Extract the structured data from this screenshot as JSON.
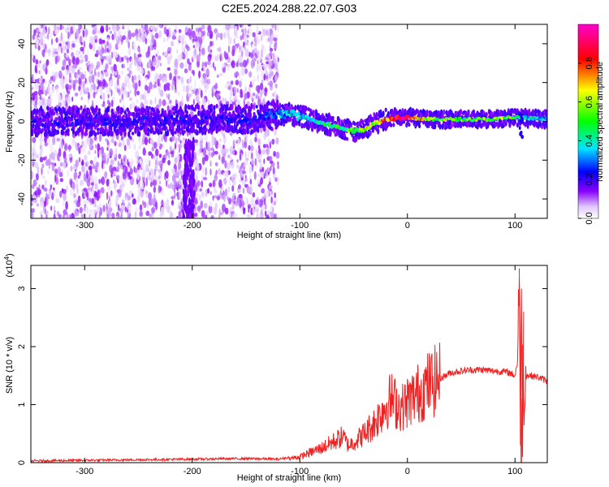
{
  "title": "C2E5.2024.288.22.07.G03",
  "chart_data": [
    {
      "type": "heatmap",
      "xlabel": "Height of straight line (km)",
      "ylabel": "Frequency (Hz)",
      "xlim": [
        -350,
        130
      ],
      "ylim": [
        -50,
        50
      ],
      "x_ticks": [
        -300,
        -200,
        -100,
        0,
        100
      ],
      "y_ticks": [
        -40,
        -20,
        0,
        20,
        40
      ],
      "colorbar": {
        "label": "Normalized spectral amplitude",
        "range": [
          0,
          1
        ],
        "ticks": [
          "0.0",
          "0.2",
          "0.4",
          "0.6",
          "0.8"
        ],
        "tick_values": [
          0.0,
          0.2,
          0.4,
          0.6,
          0.8
        ],
        "colors": [
          "#ffffff",
          "#e0c8ff",
          "#8800ff",
          "#0000ff",
          "#00e5ff",
          "#00ff00",
          "#ffff00",
          "#ff0000",
          "#ff00cc"
        ]
      },
      "ridge": [
        {
          "x": -350,
          "y": 0,
          "amp": 0.15
        },
        {
          "x": -300,
          "y": 0,
          "amp": 0.17
        },
        {
          "x": -250,
          "y": 0,
          "amp": 0.2
        },
        {
          "x": -200,
          "y": 1,
          "amp": 0.2
        },
        {
          "x": -150,
          "y": 1,
          "amp": 0.22
        },
        {
          "x": -125,
          "y": 3,
          "amp": 0.3
        },
        {
          "x": -110,
          "y": 4,
          "amp": 0.38
        },
        {
          "x": -95,
          "y": 2,
          "amp": 0.42
        },
        {
          "x": -80,
          "y": -1,
          "amp": 0.45
        },
        {
          "x": -65,
          "y": -3,
          "amp": 0.5
        },
        {
          "x": -50,
          "y": -5,
          "amp": 0.55
        },
        {
          "x": -40,
          "y": -4,
          "amp": 0.62
        },
        {
          "x": -30,
          "y": -1,
          "amp": 0.7
        },
        {
          "x": -20,
          "y": 1,
          "amp": 0.8
        },
        {
          "x": -10,
          "y": 2,
          "amp": 0.88
        },
        {
          "x": 0,
          "y": 2,
          "amp": 0.95
        },
        {
          "x": 20,
          "y": 1,
          "amp": 0.6
        },
        {
          "x": 50,
          "y": 1,
          "amp": 0.58
        },
        {
          "x": 80,
          "y": 1,
          "amp": 0.6
        },
        {
          "x": 95,
          "y": 2,
          "amp": 0.62
        },
        {
          "x": 105,
          "y": 2,
          "amp": 0.4
        },
        {
          "x": 130,
          "y": 1,
          "amp": 0.38
        }
      ]
    },
    {
      "type": "line",
      "xlabel": "Height of straight line (km)",
      "ylabel": "SNR (10 * v/v)",
      "scale_label": "(x10",
      "scale_exponent": "4",
      "xlim": [
        -350,
        130
      ],
      "ylim": [
        0,
        3.4
      ],
      "x_ticks": [
        -300,
        -200,
        -100,
        0,
        100
      ],
      "y_ticks": [
        0,
        1,
        2,
        3
      ],
      "series": [
        {
          "color": "#ee2222",
          "x": [
            -350,
            -300,
            -250,
            -200,
            -150,
            -120,
            -100,
            -90,
            -80,
            -70,
            -60,
            -55,
            -50,
            -40,
            -30,
            -25,
            -20,
            -15,
            -10,
            -5,
            0,
            10,
            20,
            30,
            40,
            50,
            60,
            70,
            80,
            90,
            95,
            100,
            102,
            104,
            105,
            106,
            107,
            108,
            110,
            115,
            120,
            125,
            130
          ],
          "y": [
            0.01,
            0.02,
            0.03,
            0.04,
            0.05,
            0.04,
            0.1,
            0.18,
            0.25,
            0.35,
            0.45,
            0.3,
            0.35,
            0.5,
            0.7,
            0.85,
            1.0,
            1.1,
            1.0,
            0.95,
            1.05,
            1.2,
            1.35,
            1.45,
            1.55,
            1.58,
            1.6,
            1.6,
            1.58,
            1.57,
            1.55,
            1.5,
            1.7,
            3.3,
            1.0,
            0.15,
            1.9,
            1.2,
            1.5,
            1.5,
            1.48,
            1.45,
            1.4
          ]
        }
      ]
    }
  ]
}
